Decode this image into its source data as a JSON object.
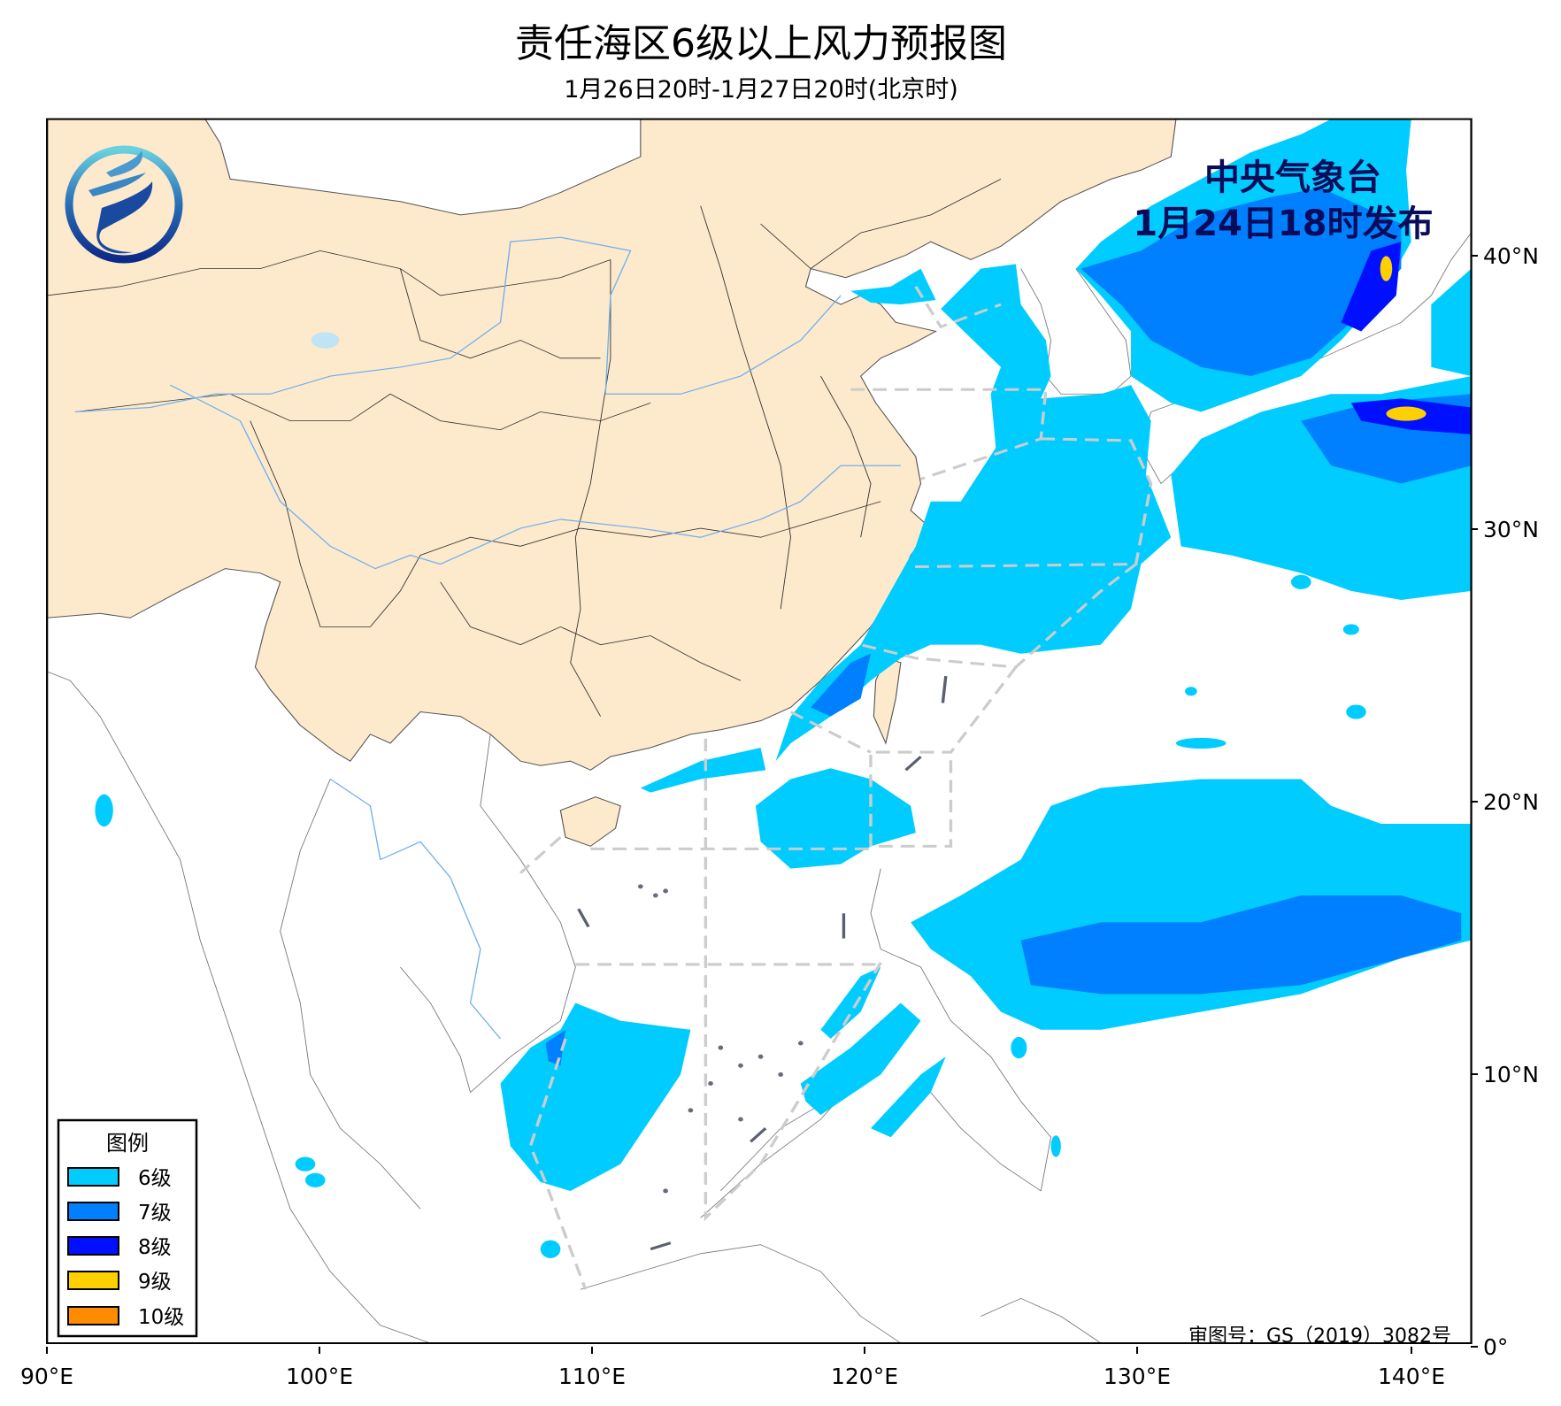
{
  "header": {
    "title": "责任海区6级以上风力预报图",
    "subtitle": "1月26日20时-1月27日20时(北京时)"
  },
  "issuer": {
    "name": "中央气象台",
    "issued": "1月24日18时发布"
  },
  "map_approval": "审图号：GS（2019）3082号",
  "axes": {
    "x_ticks": [
      "90°E",
      "100°E",
      "110°E",
      "120°E",
      "130°E",
      "140°E"
    ],
    "y_ticks": [
      "0°",
      "10°N",
      "20°N",
      "30°N",
      "40°N"
    ],
    "lon_range": [
      90,
      142
    ],
    "lat_range": [
      0,
      45
    ]
  },
  "legend": {
    "title": "图例",
    "items": [
      {
        "label": "6级",
        "color": "#00ccff"
      },
      {
        "label": "7级",
        "color": "#0080ff"
      },
      {
        "label": "8级",
        "color": "#0010ff"
      },
      {
        "label": "9级",
        "color": "#ffd000"
      },
      {
        "label": "10级",
        "color": "#ff8c00"
      }
    ]
  },
  "colors": {
    "land_china": "#fde9cc",
    "border": "#333333",
    "river": "#6fb0f0",
    "zone_line": "#cccccc"
  },
  "logo": "cma-logo-icon"
}
